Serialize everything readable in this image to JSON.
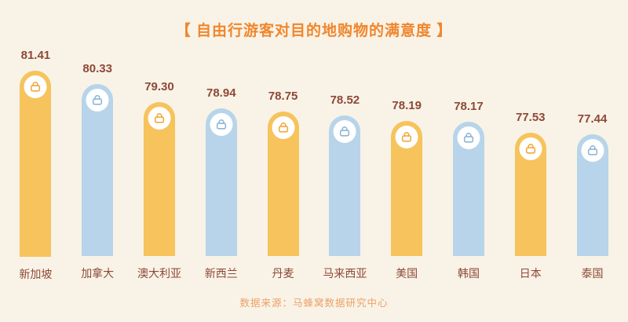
{
  "header": {
    "title": "【 自由行游客对目的地购物的满意度 】"
  },
  "footer": {
    "source_text": "数据来源：马蜂窝数据研究中心"
  },
  "colors": {
    "background": "#f8f3e6",
    "title": "#f0862d",
    "value_text": "#8e4838",
    "category_text": "#8e4838",
    "footer_text": "#eda06a",
    "bar_orange": "#f6c35c",
    "bar_blue": "#b7d4ea",
    "icon_orange": "#f2a93b",
    "icon_blue": "#8cb6d8",
    "icon_circle": "#ffffff"
  },
  "chart_data": {
    "type": "bar",
    "title": "自由行游客对目的地购物的满意度",
    "categories": [
      "新加坡",
      "加拿大",
      "澳大利亚",
      "新西兰",
      "丹麦",
      "马来西亚",
      "美国",
      "韩国",
      "日本",
      "泰国"
    ],
    "values": [
      81.41,
      80.33,
      79.3,
      78.94,
      78.75,
      78.52,
      78.19,
      78.17,
      77.53,
      77.44
    ],
    "value_labels": [
      "81.41",
      "80.33",
      "79.30",
      "78.94",
      "78.75",
      "78.52",
      "78.19",
      "78.17",
      "77.53",
      "77.44"
    ],
    "bar_color_pattern": [
      "orange",
      "blue",
      "orange",
      "blue",
      "orange",
      "blue",
      "orange",
      "blue",
      "orange",
      "blue"
    ],
    "bar_icon": "shopping-bag",
    "xlabel": "",
    "ylabel": "",
    "grid": false,
    "legend": "none",
    "value_label_position": "above-bar",
    "source": "马蜂窝数据研究中心"
  }
}
